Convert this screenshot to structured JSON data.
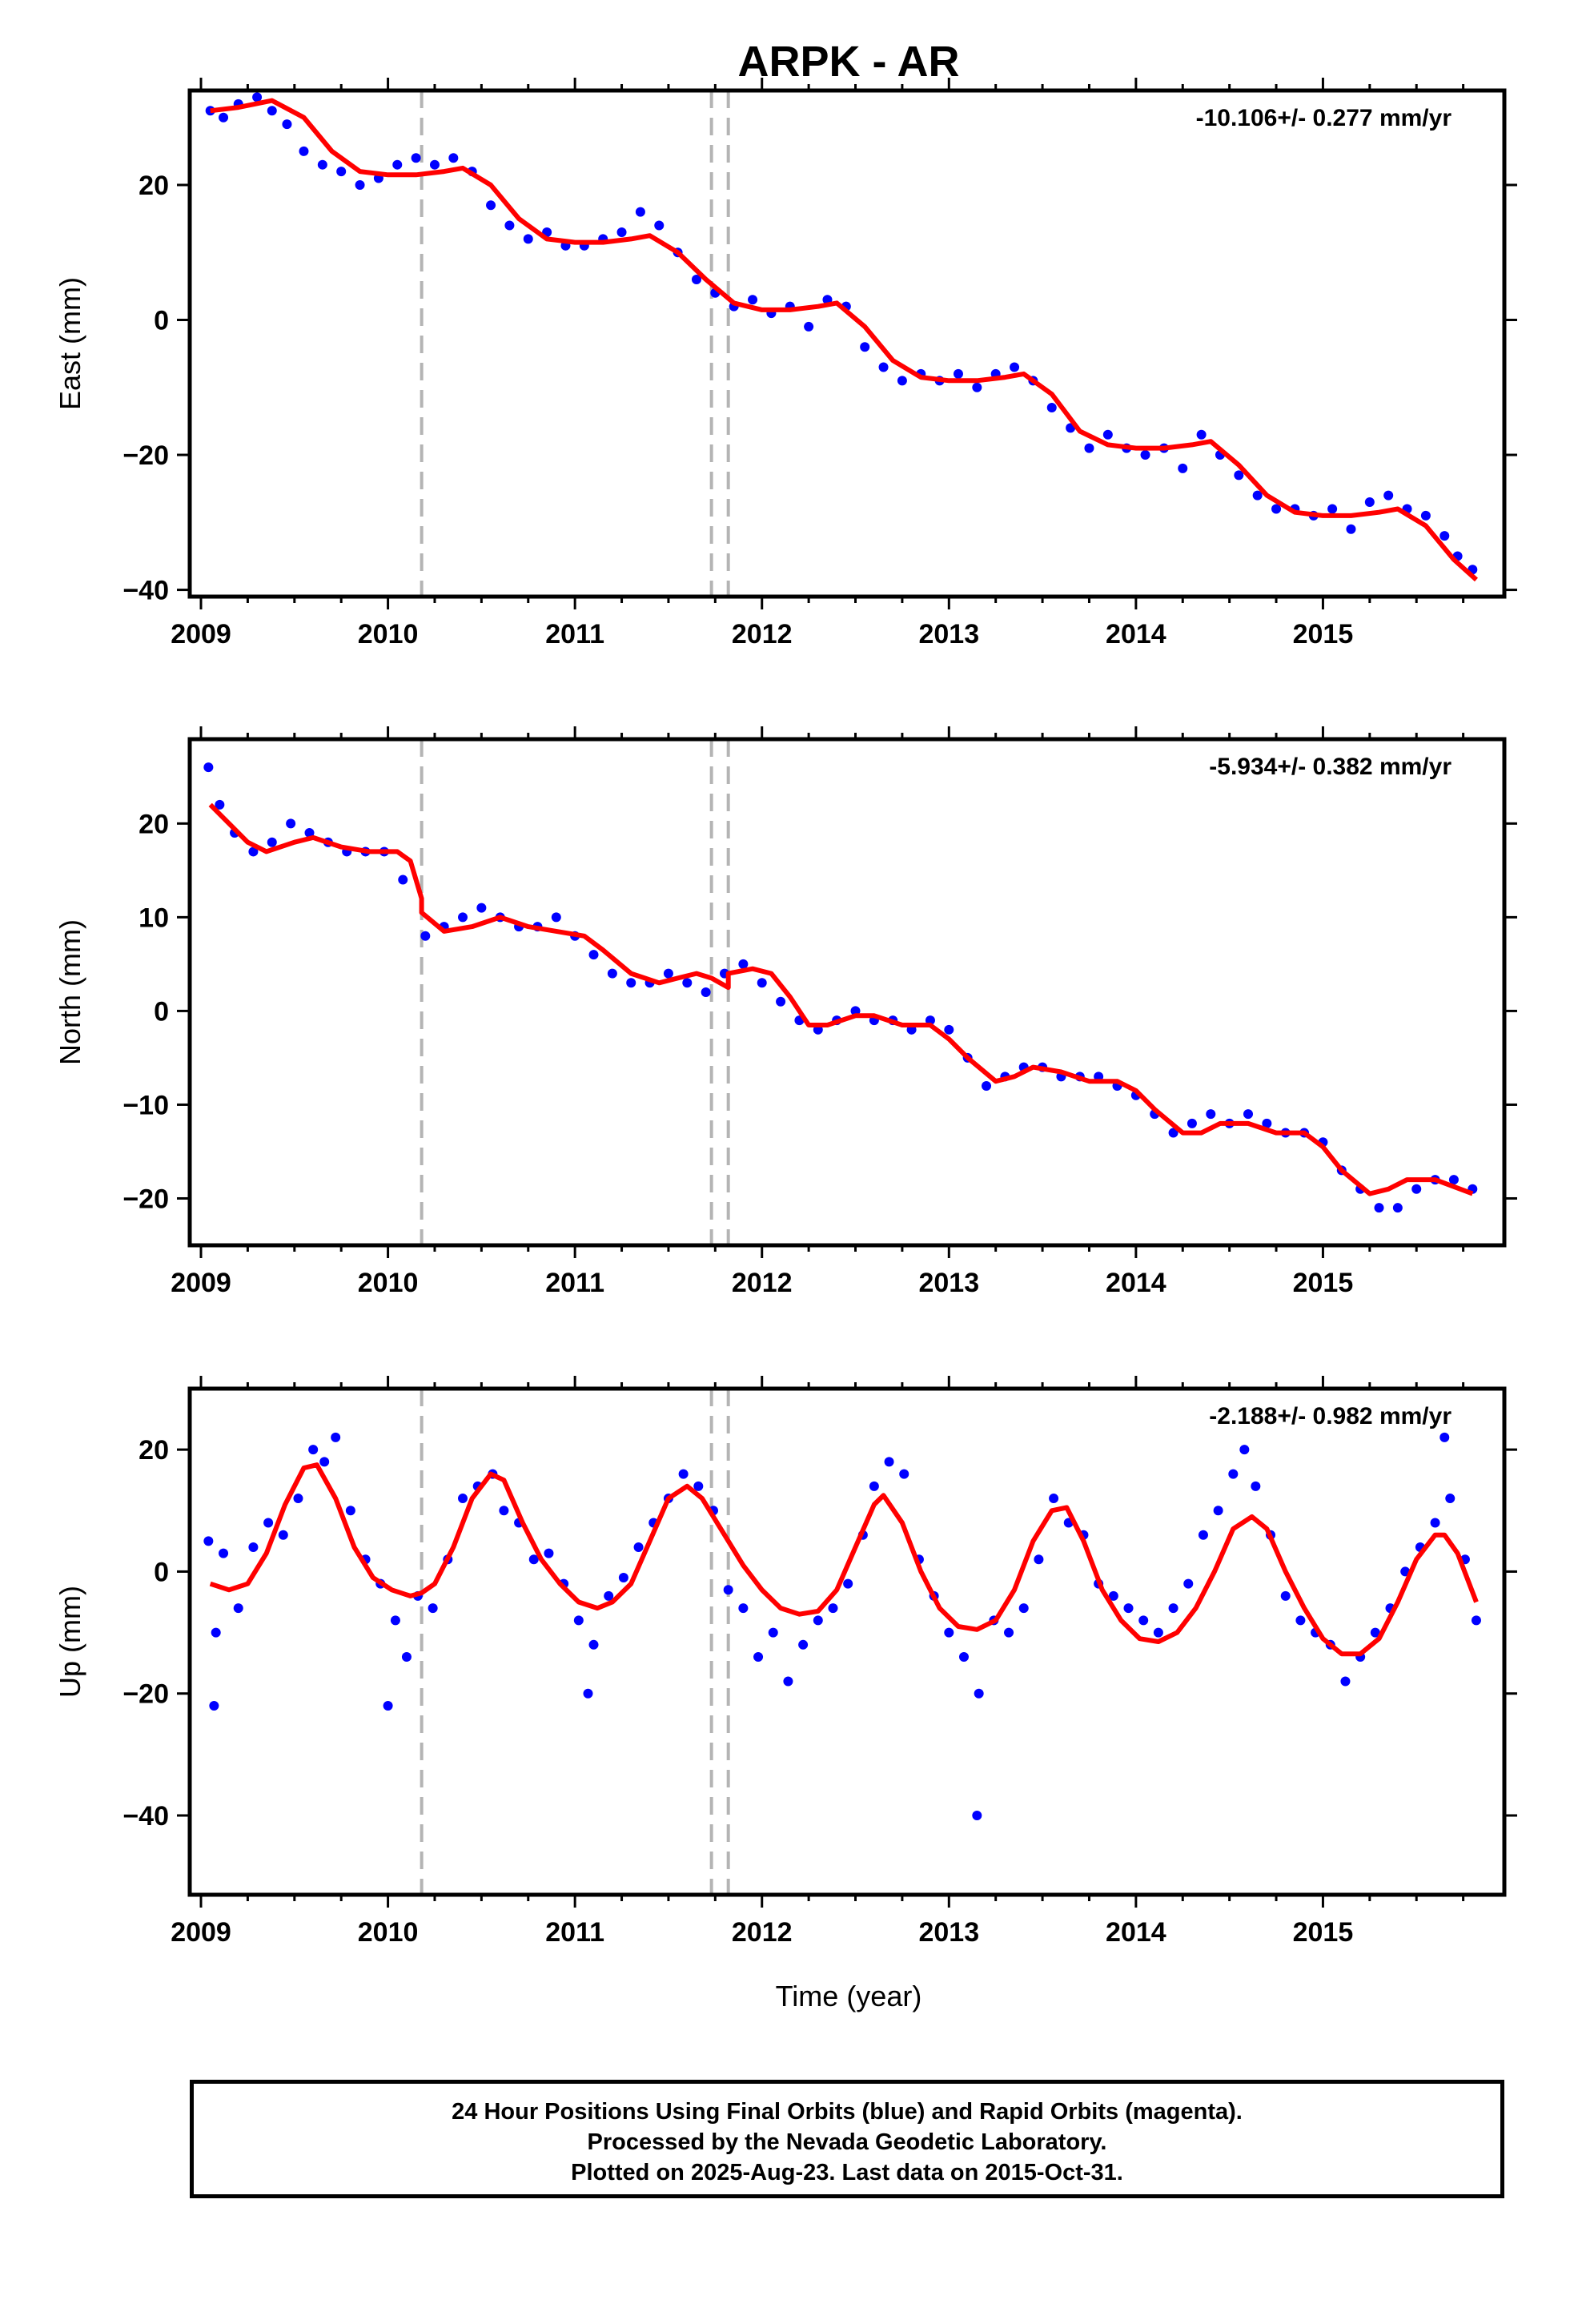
{
  "title": "ARPK - AR",
  "colors": {
    "data": "#0000ff",
    "model": "#ff0000",
    "offset": "#b4b4b4",
    "frame": "#000000"
  },
  "xaxis": {
    "label": "Time (year)",
    "ticks": [
      "2009",
      "2010",
      "2011",
      "2012",
      "2013",
      "2014",
      "2015"
    ]
  },
  "offset_epochs": [
    2010.18,
    2011.73,
    2011.82
  ],
  "chart_data": [
    {
      "type": "scatter",
      "component": "East",
      "ylabel": "East (mm)",
      "rate": "-10.106+/- 0.277 mm/yr",
      "xlim": [
        2008.94,
        2015.97
      ],
      "ylim": [
        -41,
        34
      ],
      "yticks": [
        20,
        0,
        -20,
        -40
      ],
      "yticklabels": [
        "20",
        "0",
        "−20",
        "−40"
      ],
      "series": [
        {
          "name": "Final Orbits",
          "role": "data",
          "x": [
            2009.05,
            2009.12,
            2009.2,
            2009.3,
            2009.38,
            2009.46,
            2009.55,
            2009.65,
            2009.75,
            2009.85,
            2009.95,
            2010.05,
            2010.15,
            2010.25,
            2010.35,
            2010.45,
            2010.55,
            2010.65,
            2010.75,
            2010.85,
            2010.95,
            2011.05,
            2011.15,
            2011.25,
            2011.35,
            2011.45,
            2011.55,
            2011.65,
            2011.75,
            2011.85,
            2011.95,
            2012.05,
            2012.15,
            2012.25,
            2012.35,
            2012.45,
            2012.55,
            2012.65,
            2012.75,
            2012.85,
            2012.95,
            2013.05,
            2013.15,
            2013.25,
            2013.35,
            2013.45,
            2013.55,
            2013.65,
            2013.75,
            2013.85,
            2013.95,
            2014.05,
            2014.15,
            2014.25,
            2014.35,
            2014.45,
            2014.55,
            2014.65,
            2014.75,
            2014.85,
            2014.95,
            2015.05,
            2015.15,
            2015.25,
            2015.35,
            2015.45,
            2015.55,
            2015.65,
            2015.72,
            2015.8
          ],
          "y": [
            31,
            30,
            32,
            33,
            31,
            29,
            25,
            23,
            22,
            20,
            21,
            23,
            24,
            23,
            24,
            22,
            17,
            14,
            12,
            13,
            11,
            11,
            12,
            13,
            16,
            14,
            10,
            6,
            4,
            2,
            3,
            1,
            2,
            -1,
            3,
            2,
            -4,
            -7,
            -9,
            -8,
            -9,
            -8,
            -10,
            -8,
            -7,
            -9,
            -13,
            -16,
            -19,
            -17,
            -19,
            -20,
            -19,
            -22,
            -17,
            -20,
            -23,
            -26,
            -28,
            -28,
            -29,
            -28,
            -31,
            -27,
            -26,
            -28,
            -29,
            -32,
            -35,
            -37
          ]
        },
        {
          "name": "Model",
          "role": "model",
          "x": [
            2009.05,
            2009.2,
            2009.38,
            2009.55,
            2009.7,
            2009.85,
            2010.0,
            2010.15,
            2010.3,
            2010.4,
            2010.55,
            2010.7,
            2010.85,
            2011.0,
            2011.15,
            2011.3,
            2011.4,
            2011.55,
            2011.7,
            2011.85,
            2012.0,
            2012.15,
            2012.3,
            2012.4,
            2012.55,
            2012.7,
            2012.85,
            2013.0,
            2013.15,
            2013.3,
            2013.4,
            2013.55,
            2013.7,
            2013.85,
            2014.0,
            2014.15,
            2014.3,
            2014.4,
            2014.55,
            2014.7,
            2014.85,
            2015.0,
            2015.15,
            2015.3,
            2015.4,
            2015.55,
            2015.7,
            2015.82
          ],
          "y": [
            31,
            31.5,
            32.5,
            30,
            25,
            22,
            21.5,
            21.5,
            22,
            22.5,
            20,
            15,
            12,
            11.5,
            11.5,
            12,
            12.5,
            10,
            6,
            2.5,
            1.5,
            1.5,
            2,
            2.5,
            -1,
            -6,
            -8.5,
            -9,
            -9,
            -8.5,
            -8,
            -11,
            -16.5,
            -18.5,
            -19,
            -19,
            -18.5,
            -18,
            -21.5,
            -26,
            -28.5,
            -29,
            -29,
            -28.5,
            -28,
            -30.5,
            -35.5,
            -38.5
          ]
        }
      ]
    },
    {
      "type": "scatter",
      "component": "North",
      "ylabel": "North (mm)",
      "rate": "-5.934+/- 0.382 mm/yr",
      "xlim": [
        2008.94,
        2015.97
      ],
      "ylim": [
        -25,
        29
      ],
      "yticks": [
        20,
        10,
        0,
        -10,
        -20
      ],
      "yticklabels": [
        "20",
        "10",
        "0",
        "−10",
        "−20"
      ],
      "series": [
        {
          "name": "Final Orbits",
          "role": "data",
          "x": [
            2009.04,
            2009.1,
            2009.18,
            2009.28,
            2009.38,
            2009.48,
            2009.58,
            2009.68,
            2009.78,
            2009.88,
            2009.98,
            2010.08,
            2010.2,
            2010.3,
            2010.4,
            2010.5,
            2010.6,
            2010.7,
            2010.8,
            2010.9,
            2011.0,
            2011.1,
            2011.2,
            2011.3,
            2011.4,
            2011.5,
            2011.6,
            2011.7,
            2011.8,
            2011.9,
            2012.0,
            2012.1,
            2012.2,
            2012.3,
            2012.4,
            2012.5,
            2012.6,
            2012.7,
            2012.8,
            2012.9,
            2013.0,
            2013.1,
            2013.2,
            2013.3,
            2013.4,
            2013.5,
            2013.6,
            2013.7,
            2013.8,
            2013.9,
            2014.0,
            2014.1,
            2014.2,
            2014.3,
            2014.4,
            2014.5,
            2014.6,
            2014.7,
            2014.8,
            2014.9,
            2015.0,
            2015.1,
            2015.2,
            2015.3,
            2015.4,
            2015.5,
            2015.6,
            2015.7,
            2015.8
          ],
          "y": [
            26,
            22,
            19,
            17,
            18,
            20,
            19,
            18,
            17,
            17,
            17,
            14,
            8,
            9,
            10,
            11,
            10,
            9,
            9,
            10,
            8,
            6,
            4,
            3,
            3,
            4,
            3,
            2,
            4,
            5,
            3,
            1,
            -1,
            -2,
            -1,
            0,
            -1,
            -1,
            -2,
            -1,
            -2,
            -5,
            -8,
            -7,
            -6,
            -6,
            -7,
            -7,
            -7,
            -8,
            -9,
            -11,
            -13,
            -12,
            -11,
            -12,
            -11,
            -12,
            -13,
            -13,
            -14,
            -17,
            -19,
            -21,
            -21,
            -19,
            -18,
            -18,
            -19
          ]
        },
        {
          "name": "Model",
          "role": "model",
          "x": [
            2009.05,
            2009.15,
            2009.25,
            2009.35,
            2009.5,
            2009.6,
            2009.75,
            2009.9,
            2010.05,
            2010.12,
            2010.18,
            2010.18,
            2010.3,
            2010.45,
            2010.6,
            2010.75,
            2010.9,
            2011.05,
            2011.15,
            2011.3,
            2011.45,
            2011.55,
            2011.65,
            2011.73,
            2011.73,
            2011.82,
            2011.82,
            2011.95,
            2012.05,
            2012.15,
            2012.25,
            2012.35,
            2012.5,
            2012.6,
            2012.75,
            2012.9,
            2013.0,
            2013.1,
            2013.25,
            2013.35,
            2013.45,
            2013.6,
            2013.75,
            2013.9,
            2014.0,
            2014.1,
            2014.25,
            2014.35,
            2014.45,
            2014.6,
            2014.75,
            2014.9,
            2015.0,
            2015.1,
            2015.25,
            2015.35,
            2015.45,
            2015.6,
            2015.8
          ],
          "y": [
            22,
            20,
            18,
            17,
            18,
            18.5,
            17.5,
            17,
            17,
            16,
            12,
            10.5,
            8.5,
            9,
            10,
            9,
            8.5,
            8,
            6.5,
            4,
            3,
            3.5,
            4,
            3.5,
            3.5,
            2.5,
            4,
            4.5,
            4,
            1.5,
            -1.5,
            -1.5,
            -0.5,
            -0.5,
            -1.5,
            -1.5,
            -3,
            -5,
            -7.5,
            -7,
            -6,
            -6.5,
            -7.5,
            -7.5,
            -8.5,
            -10.5,
            -13,
            -13,
            -12,
            -12,
            -13,
            -13,
            -14.5,
            -17,
            -19.5,
            -19,
            -18,
            -18,
            -19.5
          ]
        }
      ]
    },
    {
      "type": "scatter",
      "component": "Up",
      "ylabel": "Up (mm)",
      "rate": "-2.188+/- 0.982 mm/yr",
      "xlim": [
        2008.94,
        2015.97
      ],
      "ylim": [
        -53,
        30
      ],
      "yticks": [
        20,
        0,
        -20,
        -40
      ],
      "yticklabels": [
        "20",
        "0",
        "−20",
        "−40"
      ],
      "series": [
        {
          "name": "Final Orbits",
          "role": "data",
          "x": [
            2009.04,
            2009.08,
            2009.12,
            2009.2,
            2009.28,
            2009.36,
            2009.44,
            2009.52,
            2009.6,
            2009.66,
            2009.72,
            2009.8,
            2009.88,
            2009.96,
            2010.04,
            2010.1,
            2010.16,
            2010.24,
            2010.32,
            2010.4,
            2010.48,
            2010.56,
            2010.62,
            2010.7,
            2010.78,
            2010.86,
            2010.94,
            2011.02,
            2011.1,
            2011.18,
            2011.26,
            2011.34,
            2011.42,
            2011.5,
            2011.58,
            2011.66,
            2011.74,
            2011.82,
            2011.9,
            2011.98,
            2012.06,
            2012.14,
            2012.22,
            2012.3,
            2012.38,
            2012.46,
            2012.54,
            2012.6,
            2012.68,
            2012.76,
            2012.84,
            2012.92,
            2013.0,
            2013.08,
            2013.16,
            2013.24,
            2013.32,
            2013.4,
            2013.48,
            2013.56,
            2013.64,
            2013.72,
            2013.8,
            2013.88,
            2013.96,
            2014.04,
            2014.12,
            2014.2,
            2014.28,
            2014.36,
            2014.44,
            2014.52,
            2014.58,
            2014.64,
            2014.72,
            2014.8,
            2014.88,
            2014.96,
            2015.04,
            2015.12,
            2015.2,
            2015.28,
            2015.36,
            2015.44,
            2015.52,
            2015.6,
            2015.68,
            2015.76,
            2015.82,
            2010.0,
            2011.07,
            2013.15,
            2009.07,
            2015.65
          ],
          "y": [
            5,
            -10,
            3,
            -6,
            4,
            8,
            6,
            12,
            20,
            18,
            22,
            10,
            2,
            -2,
            -8,
            -14,
            -4,
            -6,
            2,
            12,
            14,
            16,
            10,
            8,
            2,
            3,
            -2,
            -8,
            -12,
            -4,
            -1,
            4,
            8,
            12,
            16,
            14,
            10,
            -3,
            -6,
            -14,
            -10,
            -18,
            -12,
            -8,
            -6,
            -2,
            6,
            14,
            18,
            16,
            2,
            -4,
            -10,
            -14,
            -20,
            -8,
            -10,
            -6,
            2,
            12,
            8,
            6,
            -2,
            -4,
            -6,
            -8,
            -10,
            -6,
            -2,
            6,
            10,
            16,
            20,
            14,
            6,
            -4,
            -8,
            -10,
            -12,
            -18,
            -14,
            -10,
            -6,
            0,
            4,
            8,
            12,
            2,
            -8,
            -22,
            -20,
            -40,
            -22,
            22
          ]
        },
        {
          "name": "Model",
          "role": "model",
          "x": [
            2009.05,
            2009.15,
            2009.25,
            2009.35,
            2009.45,
            2009.55,
            2009.62,
            2009.72,
            2009.82,
            2009.92,
            2010.02,
            2010.12,
            2010.18,
            2010.25,
            2010.35,
            2010.45,
            2010.55,
            2010.62,
            2010.72,
            2010.82,
            2010.92,
            2011.02,
            2011.12,
            2011.2,
            2011.3,
            2011.4,
            2011.5,
            2011.6,
            2011.68,
            2011.8,
            2011.9,
            2012.0,
            2012.1,
            2012.2,
            2012.3,
            2012.4,
            2012.5,
            2012.6,
            2012.65,
            2012.75,
            2012.85,
            2012.95,
            2013.05,
            2013.15,
            2013.25,
            2013.35,
            2013.45,
            2013.55,
            2013.63,
            2013.72,
            2013.82,
            2013.92,
            2014.02,
            2014.12,
            2014.22,
            2014.32,
            2014.42,
            2014.52,
            2014.62,
            2014.7,
            2014.8,
            2014.9,
            2015.0,
            2015.1,
            2015.2,
            2015.3,
            2015.4,
            2015.5,
            2015.6,
            2015.65,
            2015.72,
            2015.82
          ],
          "y": [
            -2,
            -3,
            -2,
            3,
            11,
            17,
            17.5,
            12,
            4,
            -1,
            -3,
            -4,
            -3.5,
            -2,
            4,
            12,
            16,
            15,
            8,
            2,
            -2,
            -5,
            -6,
            -5,
            -2,
            5,
            12,
            14,
            12,
            6,
            1,
            -3,
            -6,
            -7,
            -6.5,
            -3,
            4,
            11,
            12.5,
            8,
            0,
            -6,
            -9,
            -9.5,
            -8,
            -3,
            5,
            10,
            10.5,
            5,
            -3,
            -8,
            -11,
            -11.5,
            -10,
            -6,
            0,
            7,
            9,
            7,
            0,
            -6,
            -11,
            -13.5,
            -13.5,
            -11,
            -5,
            2,
            6,
            6,
            3,
            -5
          ]
        }
      ]
    }
  ],
  "caption": {
    "line1": "24 Hour Positions Using Final Orbits (blue) and Rapid Orbits (magenta).",
    "line2": "Processed by the Nevada Geodetic Laboratory.",
    "line3": "Plotted on 2025-Aug-23. Last data on 2015-Oct-31."
  }
}
